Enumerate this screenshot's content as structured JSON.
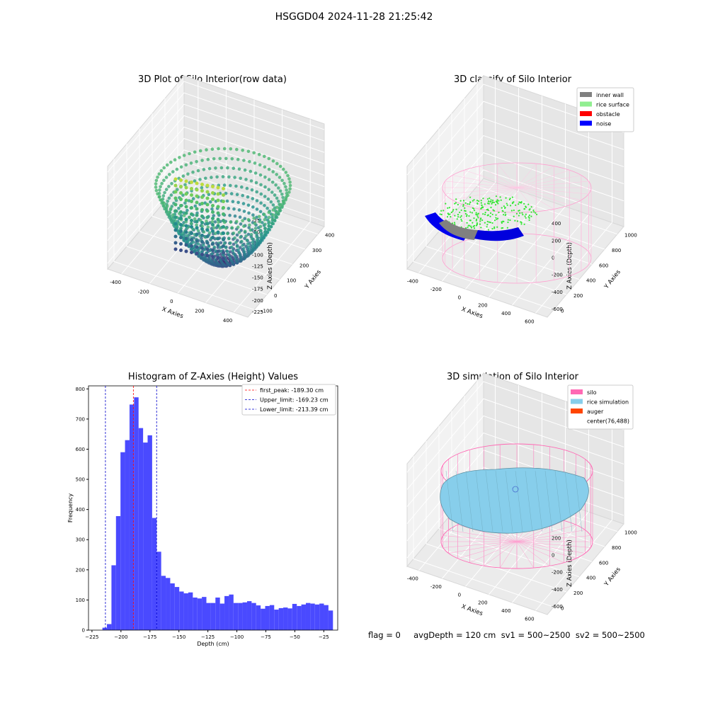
{
  "figure": {
    "suptitle": "HSGGD04 2024-11-28 21:25:42",
    "footer": "flag = 0     avgDepth = 120 cm  sv1 = 500~2500  sv2 = 500~2500"
  },
  "chart_data": [
    {
      "type": "scatter",
      "title": "3D Plot of Silo Interior(row data)",
      "xlabel": "X Axies",
      "ylabel": "Y Axies",
      "zlabel": "Z Axies (Depth)",
      "x_ticks": [
        -400,
        -200,
        0,
        200,
        400
      ],
      "y_ticks": [
        -100,
        0,
        100,
        200,
        300,
        400
      ],
      "z_ticks": [
        -225,
        -200,
        -175,
        -150,
        -125,
        -100,
        -75,
        -50,
        -25
      ],
      "colormap": "viridis",
      "points_description": "Bowl-shaped point cloud of silo interior; deepest near z=-225, rim near z=-25"
    },
    {
      "type": "scatter",
      "title": "3D classify of Silo Interior",
      "xlabel": "X Axies",
      "ylabel": "Y Axies",
      "zlabel": "Z Axies (Depth)",
      "x_ticks": [
        -400,
        -200,
        0,
        200,
        400,
        600
      ],
      "y_ticks": [
        0,
        200,
        400,
        600,
        800,
        1000
      ],
      "z_ticks": [
        -600,
        -400,
        -200,
        0,
        200,
        400
      ],
      "legend_position": "top-right",
      "legend": [
        {
          "label": "inner wall",
          "color": "#808080"
        },
        {
          "label": "rice surface",
          "color": "#90ee90"
        },
        {
          "label": "obstacle",
          "color": "#ff0000"
        },
        {
          "label": "noise",
          "color": "#0000ff"
        }
      ]
    },
    {
      "type": "bar",
      "title": "Histogram of Z-Axies (Height) Values",
      "xlabel": "Depth (cm)",
      "ylabel": "Frequency",
      "x_ticks": [
        -225,
        -200,
        -175,
        -150,
        -125,
        -100,
        -75,
        -50,
        -25
      ],
      "y_ticks": [
        0,
        100,
        200,
        300,
        400,
        500,
        600,
        700,
        800
      ],
      "xlim": [
        -228,
        -13
      ],
      "ylim": [
        0,
        810
      ],
      "bin_start": -216,
      "bin_width": 3.9,
      "values": [
        8,
        20,
        215,
        378,
        590,
        630,
        748,
        772,
        670,
        622,
        646,
        372,
        260,
        180,
        173,
        155,
        143,
        128,
        122,
        125,
        108,
        105,
        110,
        90,
        90,
        108,
        88,
        113,
        118,
        90,
        90,
        92,
        96,
        90,
        82,
        71,
        80,
        83,
        68,
        73,
        75,
        72,
        87,
        80,
        85,
        90,
        88,
        85,
        88,
        83,
        65
      ],
      "bar_color": "#4a4aff",
      "legend_position": "top-right",
      "lines": [
        {
          "label": "first_peak: -189.30 cm",
          "x": -189.3,
          "color": "#ff0000"
        },
        {
          "label": "Upper_limit: -169.23 cm",
          "x": -169.23,
          "color": "#0000cc"
        },
        {
          "label": "Lower_limit: -213.39 cm",
          "x": -213.39,
          "color": "#0000cc"
        }
      ]
    },
    {
      "type": "scatter",
      "title": "3D simulation of Silo Interior",
      "xlabel": "X Axies",
      "ylabel": "Y Axies",
      "zlabel": "Z Axies (Depth)",
      "x_ticks": [
        -400,
        -200,
        0,
        200,
        400,
        600
      ],
      "y_ticks": [
        0,
        200,
        400,
        600,
        800,
        1000
      ],
      "z_ticks": [
        -600,
        -400,
        -200,
        0,
        200,
        400
      ],
      "legend_position": "top-right",
      "legend": [
        {
          "label": "silo",
          "color": "#ff69b4"
        },
        {
          "label": "rice simulation",
          "color": "#87ceeb"
        },
        {
          "label": "auger",
          "color": "#ff4500"
        },
        {
          "label": "center(76,488)",
          "color": "none"
        }
      ]
    }
  ]
}
